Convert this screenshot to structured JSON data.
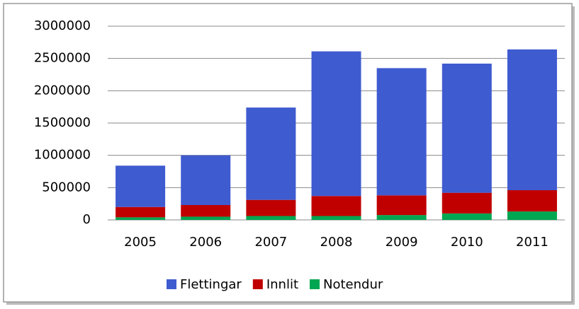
{
  "chart_data": {
    "type": "stacked_bar",
    "categories": [
      "2005",
      "2006",
      "2007",
      "2008",
      "2009",
      "2010",
      "2011"
    ],
    "series": [
      {
        "name": "Notendur",
        "color": "#00a651",
        "values": [
          40000,
          50000,
          60000,
          60000,
          75000,
          100000,
          130000
        ]
      },
      {
        "name": "Innlit",
        "color": "#c00000",
        "values": [
          160000,
          180000,
          250000,
          310000,
          305000,
          320000,
          330000
        ]
      },
      {
        "name": "Flettingar",
        "color": "#3f5bd0",
        "values": [
          640000,
          770000,
          1430000,
          2240000,
          1970000,
          2000000,
          2180000
        ]
      }
    ],
    "ylim": [
      0,
      3000000
    ],
    "yticks": [
      0,
      500000,
      1000000,
      1500000,
      2000000,
      2500000,
      3000000
    ],
    "grid": true,
    "legend": "bottom"
  }
}
